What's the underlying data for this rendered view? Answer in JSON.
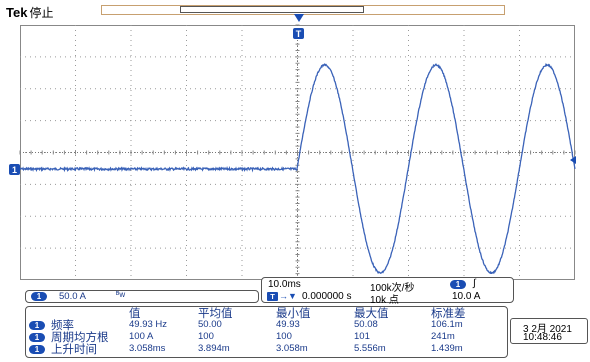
{
  "header": {
    "brand": "Tek",
    "status": "停止"
  },
  "markers": {
    "trigger_position": "T",
    "channel_ground": "1"
  },
  "trace": {
    "color": "#3a62b8",
    "frequency_hz": 49.93,
    "shape": "sine",
    "baseline_before_trigger": "flat noise"
  },
  "channel_panel": {
    "badge": "1",
    "scale": "50.0 A",
    "bandwidth_icon": "bandwidth-limit-icon"
  },
  "timebase_panel": {
    "horizontal_scale": "10.0ms",
    "sample_rate": "100k次/秒",
    "position": "0.000000 s",
    "record_length": "10k 点",
    "trigger_channel": "1",
    "trigger_slope": "∫",
    "trigger_level": "10.0 A"
  },
  "measurements": {
    "headers": [
      "值",
      "平均值",
      "最小值",
      "最大值",
      "标准差"
    ],
    "rows": [
      {
        "badge": "1",
        "label": "频率",
        "values": [
          "49.93 Hz",
          "50.00",
          "49.93",
          "50.08",
          "106.1m"
        ]
      },
      {
        "badge": "1",
        "label": "周期均方根",
        "values": [
          "100 A",
          "100",
          "100",
          "101",
          "241m"
        ]
      },
      {
        "badge": "1",
        "label": "上升时间",
        "values": [
          "3.058ms",
          "3.894m",
          "3.058m",
          "5.556m",
          "1.439m"
        ]
      }
    ]
  },
  "clock": {
    "date": "3 2月 2021",
    "time": "10:48:46"
  }
}
